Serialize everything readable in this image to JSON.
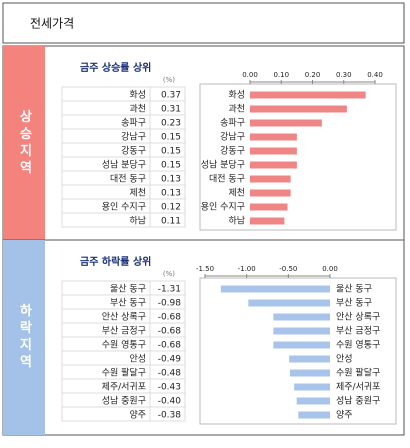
{
  "header": {
    "title": "전세가격"
  },
  "chart_data": [
    {
      "type": "bar",
      "orientation": "horizontal",
      "section": "상승지역",
      "title": "금주 상승률 상위",
      "unit": "(%)",
      "categories": [
        "화성",
        "과천",
        "송파구",
        "강남구",
        "강동구",
        "성남 분당구",
        "대전 동구",
        "제천",
        "용인 수지구",
        "하남"
      ],
      "values": [
        0.37,
        0.31,
        0.23,
        0.15,
        0.15,
        0.15,
        0.13,
        0.13,
        0.12,
        0.11
      ],
      "color": "#f08585",
      "section_color": "#f4837d",
      "xlim": [
        0,
        0.4
      ],
      "xticks": [
        {
          "value": 0,
          "label": "0.00"
        },
        {
          "value": 0.1,
          "label": "0.10"
        },
        {
          "value": 0.2,
          "label": "0.20"
        },
        {
          "value": 0.3,
          "label": "0.30"
        },
        {
          "value": 0.4,
          "label": "0.40"
        }
      ]
    },
    {
      "type": "bar",
      "orientation": "horizontal",
      "section": "하락지역",
      "title": "금주 하락률 상위",
      "unit": "(%)",
      "categories": [
        "울산 동구",
        "부산 동구",
        "안산 상록구",
        "부산 금정구",
        "수원 영통구",
        "안성",
        "수원 팔달구",
        "제주/서귀포",
        "성남 중원구",
        "양주"
      ],
      "values": [
        -1.31,
        -0.98,
        -0.68,
        -0.68,
        -0.68,
        -0.49,
        -0.48,
        -0.43,
        -0.4,
        -0.38
      ],
      "value_labels": [
        "-1.31",
        "-0.98",
        "-0.68",
        "-0.68",
        "-0.68",
        "-0.49",
        "-0.48",
        "-0.43",
        "-0.40",
        "-0.38"
      ],
      "color": "#a8c4ea",
      "section_color": "#a4c2e8",
      "xlim": [
        -1.5,
        0
      ],
      "xticks": [
        {
          "value": -1.5,
          "label": "-1.50"
        },
        {
          "value": -1,
          "label": "-1.00"
        },
        {
          "value": -0.5,
          "label": "-0.50"
        },
        {
          "value": 0,
          "label": "0.00"
        }
      ]
    }
  ]
}
